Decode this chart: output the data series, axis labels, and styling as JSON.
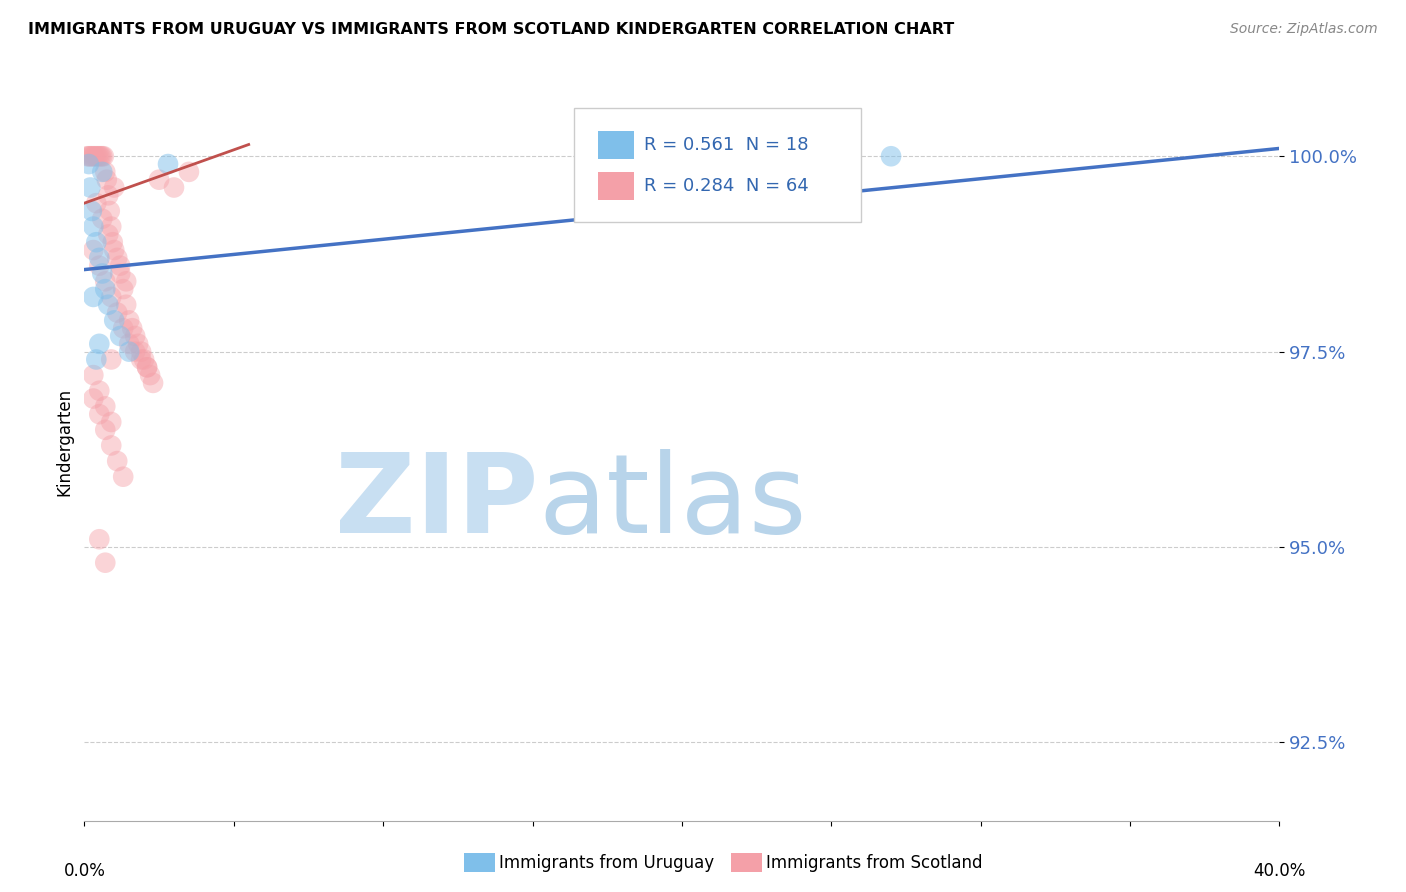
{
  "title": "IMMIGRANTS FROM URUGUAY VS IMMIGRANTS FROM SCOTLAND KINDERGARTEN CORRELATION CHART",
  "source": "Source: ZipAtlas.com",
  "ylabel": "Kindergarten",
  "legend_label1": "Immigrants from Uruguay",
  "legend_label2": "Immigrants from Scotland",
  "R_uruguay": 0.561,
  "N_uruguay": 18,
  "R_scotland": 0.284,
  "N_scotland": 64,
  "color_uruguay": "#7fbfea",
  "color_scotland": "#f4a0a8",
  "color_line_uruguay": "#4472c4",
  "color_line_scotland": "#c0504d",
  "watermark_zip_color": "#c8dff2",
  "watermark_atlas_color": "#b8d4ea",
  "xlim": [
    0.0,
    40.0
  ],
  "ylim": [
    91.5,
    101.2
  ],
  "yticks": [
    92.5,
    95.0,
    97.5,
    100.0
  ],
  "ytick_labels": [
    "92.5%",
    "95.0%",
    "97.5%",
    "100.0%"
  ],
  "uru_line_x0": 0.0,
  "uru_line_y0": 98.55,
  "uru_line_x1": 40.0,
  "uru_line_y1": 100.1,
  "sco_line_x0": 0.0,
  "sco_line_y0": 99.4,
  "sco_line_x1": 5.5,
  "sco_line_y1": 100.15,
  "uruguay_x": [
    0.15,
    0.2,
    0.25,
    0.3,
    0.4,
    0.5,
    0.6,
    0.7,
    0.8,
    1.0,
    1.2,
    1.5,
    0.3,
    0.5,
    2.8,
    0.4,
    27.0,
    0.6
  ],
  "uruguay_y": [
    99.9,
    99.6,
    99.3,
    99.1,
    98.9,
    98.7,
    98.5,
    98.3,
    98.1,
    97.9,
    97.7,
    97.5,
    98.2,
    97.6,
    99.9,
    97.4,
    100.0,
    99.8
  ],
  "scotland_x": [
    0.1,
    0.15,
    0.2,
    0.25,
    0.3,
    0.35,
    0.4,
    0.45,
    0.5,
    0.55,
    0.6,
    0.65,
    0.7,
    0.75,
    0.8,
    0.85,
    0.9,
    0.95,
    1.0,
    1.1,
    1.2,
    1.3,
    1.4,
    1.5,
    1.6,
    1.7,
    1.8,
    1.9,
    2.0,
    2.1,
    2.2,
    2.3,
    0.3,
    0.5,
    0.7,
    0.9,
    1.1,
    1.3,
    1.5,
    1.7,
    1.9,
    2.1,
    0.4,
    0.6,
    0.8,
    1.0,
    1.2,
    1.4,
    2.5,
    3.0,
    0.3,
    0.5,
    0.7,
    0.9,
    1.1,
    1.3,
    0.3,
    0.5,
    0.7,
    0.9,
    0.5,
    0.7,
    0.9,
    3.5
  ],
  "scotland_y": [
    100.0,
    100.0,
    100.0,
    100.0,
    100.0,
    100.0,
    100.0,
    100.0,
    100.0,
    100.0,
    100.0,
    100.0,
    99.8,
    99.7,
    99.5,
    99.3,
    99.1,
    98.9,
    99.6,
    98.7,
    98.5,
    98.3,
    98.1,
    97.9,
    97.8,
    97.7,
    97.6,
    97.5,
    97.4,
    97.3,
    97.2,
    97.1,
    98.8,
    98.6,
    98.4,
    98.2,
    98.0,
    97.8,
    97.6,
    97.5,
    97.4,
    97.3,
    99.4,
    99.2,
    99.0,
    98.8,
    98.6,
    98.4,
    99.7,
    99.6,
    96.9,
    96.7,
    96.5,
    96.3,
    96.1,
    95.9,
    97.2,
    97.0,
    96.8,
    96.6,
    95.1,
    94.8,
    97.4,
    99.8
  ]
}
